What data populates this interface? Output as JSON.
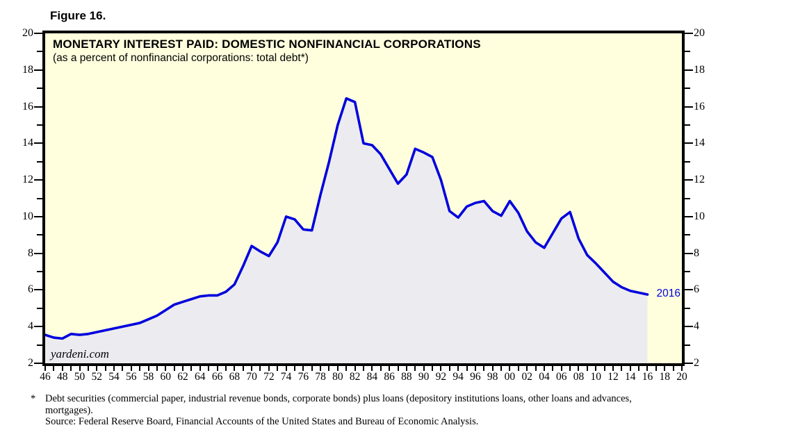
{
  "figure_label": "Figure 16.",
  "chart": {
    "title": "MONETARY INTEREST PAID: DOMESTIC NONFINANCIAL CORPORATIONS",
    "subtitle": "(as a percent of nonfinancial corporations: total debt*)",
    "watermark": "yardeni.com",
    "end_label": "2016",
    "colors": {
      "plot_background": "#FFFFDE",
      "line": "#0000DD",
      "area_fill": "#ECECF0",
      "frame": "#000000",
      "end_label_color": "#0000DD"
    }
  },
  "chart_data": {
    "type": "area",
    "title": "MONETARY INTEREST PAID: DOMESTIC NONFINANCIAL CORPORATIONS",
    "subtitle": "(as a percent of nonfinancial corporations: total debt*)",
    "xlabel": "",
    "ylabel": "",
    "xlim": [
      1946,
      2020
    ],
    "ylim": [
      2,
      20
    ],
    "grid": false,
    "legend": "none",
    "x": [
      1946,
      1947,
      1948,
      1949,
      1950,
      1951,
      1952,
      1953,
      1954,
      1955,
      1956,
      1957,
      1958,
      1959,
      1960,
      1961,
      1962,
      1963,
      1964,
      1965,
      1966,
      1967,
      1968,
      1969,
      1970,
      1971,
      1972,
      1973,
      1974,
      1975,
      1976,
      1977,
      1978,
      1979,
      1980,
      1981,
      1982,
      1983,
      1984,
      1985,
      1986,
      1987,
      1988,
      1989,
      1990,
      1991,
      1992,
      1993,
      1994,
      1995,
      1996,
      1997,
      1998,
      1999,
      2000,
      2001,
      2002,
      2003,
      2004,
      2005,
      2006,
      2007,
      2008,
      2009,
      2010,
      2011,
      2012,
      2013,
      2014,
      2015,
      2016
    ],
    "values": [
      3.55,
      3.4,
      3.35,
      3.6,
      3.55,
      3.6,
      3.7,
      3.8,
      3.9,
      4.0,
      4.1,
      4.2,
      4.4,
      4.6,
      4.9,
      5.2,
      5.35,
      5.5,
      5.65,
      5.7,
      5.7,
      5.9,
      6.3,
      7.3,
      8.4,
      8.1,
      7.85,
      8.6,
      10.0,
      9.85,
      9.3,
      9.25,
      11.2,
      13.0,
      15.0,
      16.45,
      16.25,
      14.0,
      13.9,
      13.4,
      12.6,
      11.8,
      12.3,
      13.7,
      13.5,
      13.25,
      12.0,
      10.3,
      9.95,
      10.55,
      10.75,
      10.85,
      10.3,
      10.05,
      10.85,
      10.2,
      9.2,
      8.6,
      8.3,
      9.1,
      9.9,
      10.25,
      8.8,
      7.9,
      7.45,
      6.95,
      6.45,
      6.15,
      5.95,
      5.85,
      5.75
    ],
    "series_end_annotation": "2016",
    "y_major_ticks": [
      2,
      4,
      6,
      8,
      10,
      12,
      14,
      16,
      18,
      20
    ],
    "y_minor_ticks": [
      3,
      5,
      7,
      9,
      11,
      13,
      15,
      17,
      19
    ],
    "y_tick_labels": [
      "2",
      "4",
      "6",
      "8",
      "10",
      "12",
      "14",
      "16",
      "18",
      "20"
    ],
    "y_axis_sides": "both",
    "x_minor_tick_step_years": 1,
    "x_tick_labels": [
      "46",
      "48",
      "50",
      "52",
      "54",
      "56",
      "58",
      "60",
      "62",
      "64",
      "66",
      "68",
      "70",
      "72",
      "74",
      "76",
      "78",
      "80",
      "82",
      "84",
      "86",
      "88",
      "90",
      "92",
      "94",
      "96",
      "98",
      "00",
      "02",
      "04",
      "06",
      "08",
      "10",
      "12",
      "14",
      "16",
      "18",
      "20"
    ]
  },
  "footnote": {
    "marker": "*",
    "line1": "Debt securities (commercial paper, industrial revenue bonds, corporate bonds) plus loans (depository institutions loans, other loans and advances,",
    "line2": "mortgages).",
    "source": "Source: Federal Reserve Board, Financial Accounts of the United States and Bureau of Economic Analysis."
  }
}
